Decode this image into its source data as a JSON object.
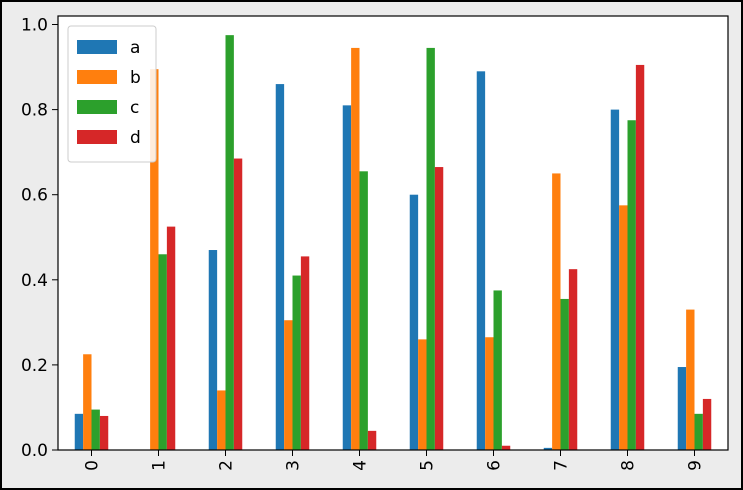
{
  "chart_data": {
    "type": "bar",
    "categories": [
      "0",
      "1",
      "2",
      "3",
      "4",
      "5",
      "6",
      "7",
      "8",
      "9"
    ],
    "series": [
      {
        "name": "a",
        "color": "#1f77b4",
        "values": [
          0.085,
          0.0,
          0.47,
          0.86,
          0.81,
          0.6,
          0.89,
          0.005,
          0.8,
          0.195
        ]
      },
      {
        "name": "b",
        "color": "#ff7f0e",
        "values": [
          0.225,
          0.895,
          0.14,
          0.305,
          0.945,
          0.26,
          0.265,
          0.65,
          0.575,
          0.33
        ]
      },
      {
        "name": "c",
        "color": "#2ca02c",
        "values": [
          0.095,
          0.46,
          0.975,
          0.41,
          0.655,
          0.945,
          0.375,
          0.355,
          0.775,
          0.085
        ]
      },
      {
        "name": "d",
        "color": "#d62728",
        "values": [
          0.08,
          0.525,
          0.685,
          0.455,
          0.045,
          0.665,
          0.01,
          0.425,
          0.905,
          0.12
        ]
      }
    ],
    "ylim": [
      0,
      1.02
    ],
    "yticks": [
      "0.0",
      "0.2",
      "0.4",
      "0.6",
      "0.8",
      "1.0"
    ],
    "ytick_values": [
      0,
      0.2,
      0.4,
      0.6,
      0.8,
      1.0
    ],
    "xlabel": "",
    "ylabel": "",
    "title": "",
    "legend_position": "top-left",
    "grid": false,
    "xtick_rotation": "vertical"
  }
}
